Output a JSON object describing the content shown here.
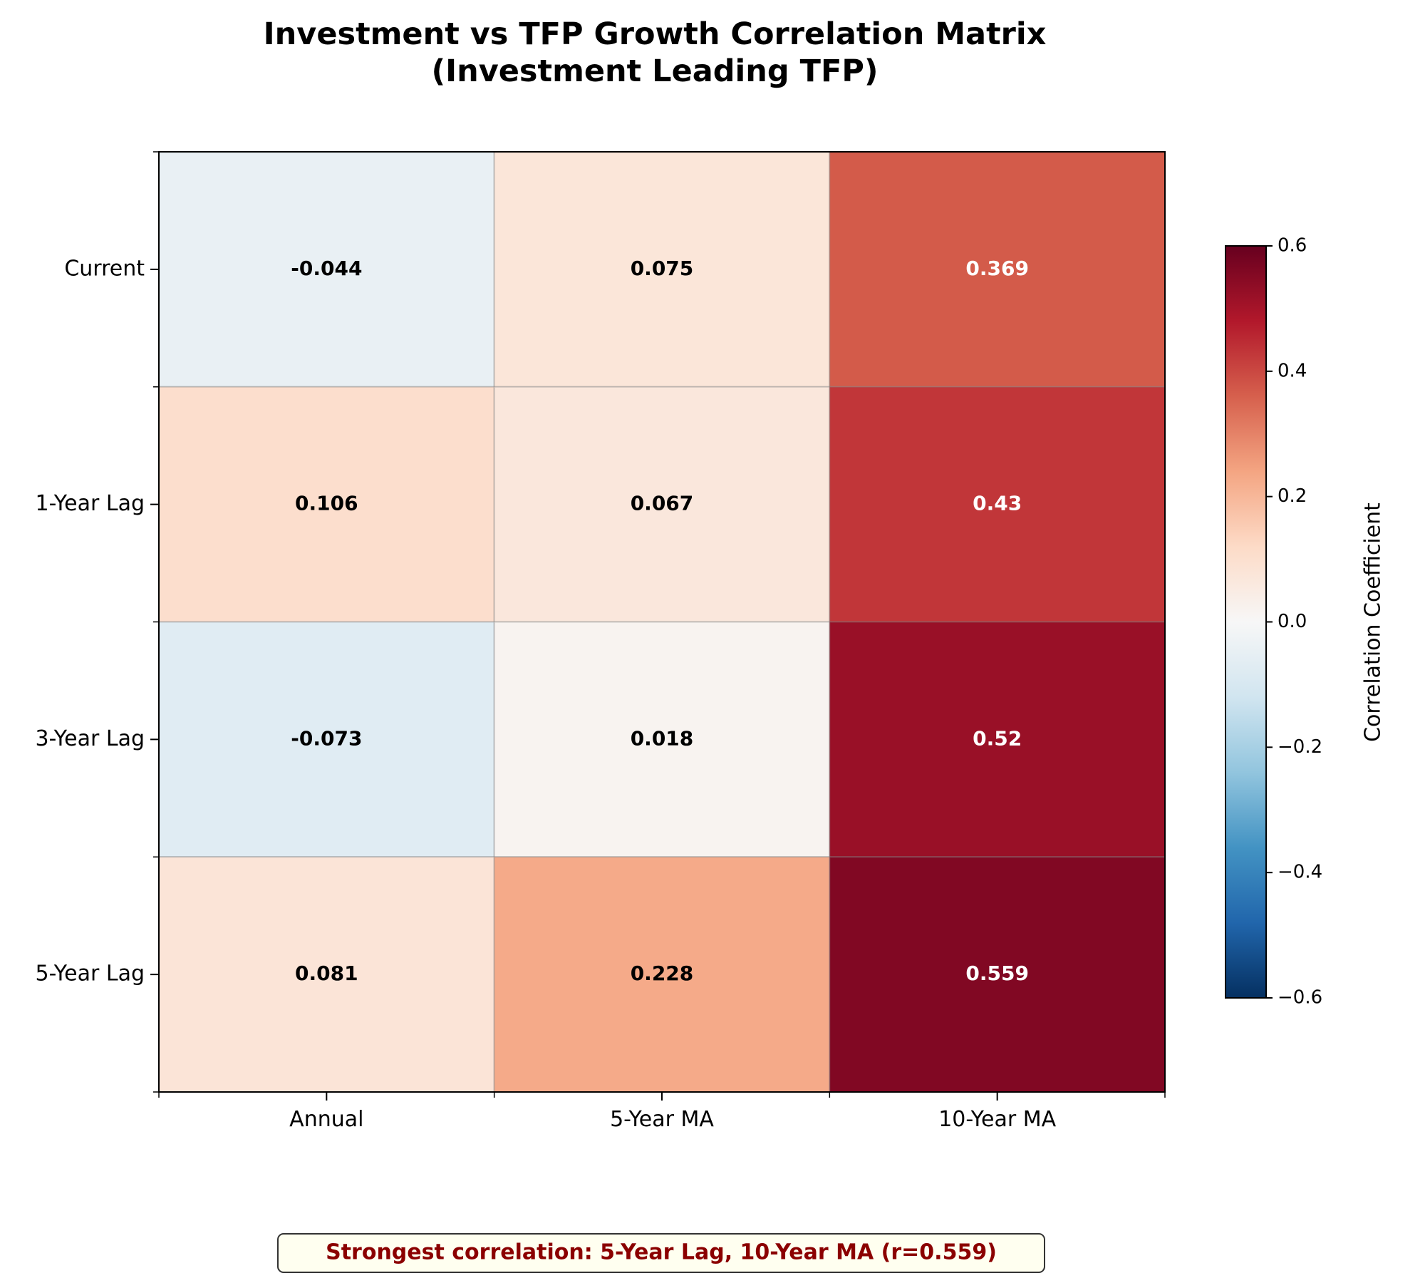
{
  "chart_data": {
    "type": "heatmap",
    "title_lines": [
      "Investment vs TFP Growth Correlation Matrix",
      "(Investment Leading TFP)"
    ],
    "rows": [
      "Current",
      "1-Year Lag",
      "3-Year Lag",
      "5-Year Lag"
    ],
    "columns": [
      "Annual",
      "5-Year MA",
      "10-Year MA"
    ],
    "values": [
      [
        -0.044,
        0.075,
        0.369
      ],
      [
        0.106,
        0.067,
        0.43
      ],
      [
        -0.073,
        0.018,
        0.52
      ],
      [
        0.081,
        0.228,
        0.559
      ]
    ],
    "value_labels": [
      [
        "-0.044",
        "0.075",
        "0.369"
      ],
      [
        "0.106",
        "0.067",
        "0.43"
      ],
      [
        "-0.073",
        "0.018",
        "0.52"
      ],
      [
        "0.081",
        "0.228",
        "0.559"
      ]
    ],
    "colormap": "RdBu_r",
    "colorbar": {
      "label": "Correlation Coefficient",
      "range": [
        -0.6,
        0.6
      ],
      "ticks": [
        0.6,
        0.4,
        0.2,
        0.0,
        -0.2,
        -0.4,
        -0.6
      ],
      "tick_labels": [
        "0.6",
        "0.4",
        "0.2",
        "0.0",
        "−0.2",
        "−0.4",
        "−0.6"
      ]
    },
    "annotation": "Strongest correlation: 5-Year Lag, 10-Year MA (r=0.559)"
  },
  "colors": {
    "annotation_text": "#8b0000",
    "annotation_box_fill": "#fffff0",
    "annotation_box_stroke": "#333333"
  }
}
